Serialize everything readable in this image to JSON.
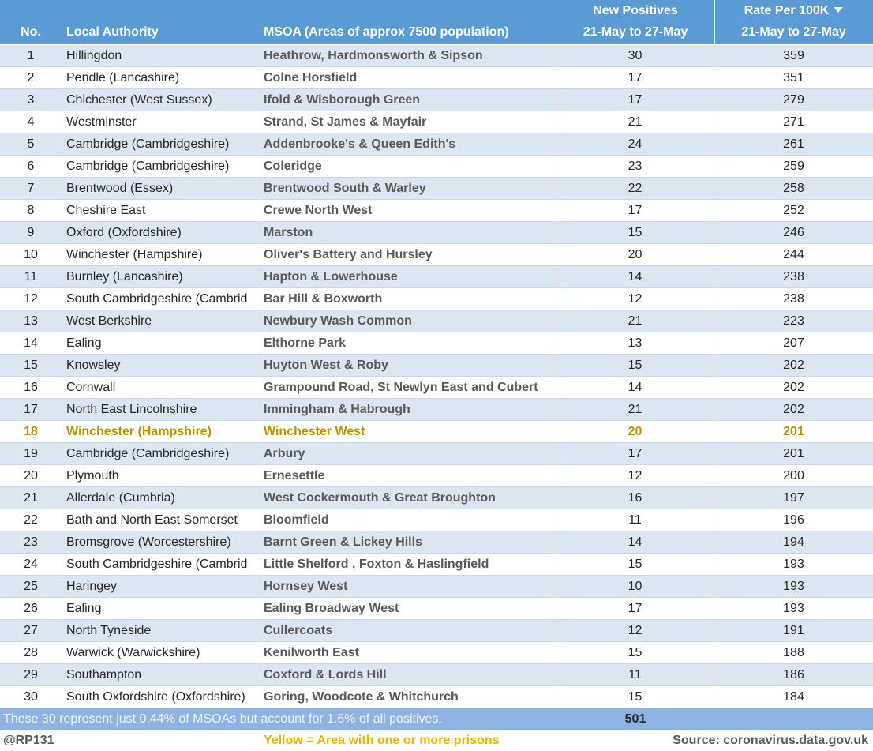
{
  "table": {
    "header": {
      "no": "No.",
      "local_authority": "Local Authority",
      "msoa": "MSOA (Areas of approx 7500 population)",
      "new_positives": [
        "New Positives",
        "21-May to 27-May"
      ],
      "rate": [
        "Rate Per 100K",
        "21-May to 27-May"
      ]
    },
    "rows": [
      [
        1,
        "Hillingdon",
        "Heathrow, Hardmonsworth & Sipson",
        30,
        359
      ],
      [
        2,
        "Pendle (Lancashire)",
        "Colne Horsfield",
        17,
        351
      ],
      [
        3,
        "Chichester (West Sussex)",
        "Ifold & Wisborough Green",
        17,
        279
      ],
      [
        4,
        "Westminster",
        "Strand, St James & Mayfair",
        21,
        271
      ],
      [
        5,
        "Cambridge (Cambridgeshire)",
        "Addenbrooke's & Queen Edith's",
        24,
        261
      ],
      [
        6,
        "Cambridge (Cambridgeshire)",
        "Coleridge",
        23,
        259
      ],
      [
        7,
        "Brentwood (Essex)",
        "Brentwood South & Warley",
        22,
        258
      ],
      [
        8,
        "Cheshire East",
        "Crewe North West",
        17,
        252
      ],
      [
        9,
        "Oxford (Oxfordshire)",
        "Marston",
        15,
        246
      ],
      [
        10,
        "Winchester (Hampshire)",
        "Oliver's Battery and Hursley",
        20,
        244
      ],
      [
        11,
        "Burnley (Lancashire)",
        "Hapton & Lowerhouse",
        14,
        238
      ],
      [
        12,
        "South Cambridgeshire (Cambrid",
        "Bar Hill & Boxworth",
        12,
        238
      ],
      [
        13,
        "West Berkshire",
        "Newbury Wash Common",
        21,
        223
      ],
      [
        14,
        "Ealing",
        "Elthorne Park",
        13,
        207
      ],
      [
        15,
        "Knowsley",
        "Huyton West & Roby",
        15,
        202
      ],
      [
        16,
        "Cornwall",
        "Grampound Road, St Newlyn East and Cubert",
        14,
        202
      ],
      [
        17,
        "North East Lincolnshire",
        "Immingham & Habrough",
        21,
        202
      ],
      [
        18,
        "Winchester (Hampshire)",
        "Winchester West",
        20,
        201
      ],
      [
        19,
        "Cambridge (Cambridgeshire)",
        "Arbury",
        17,
        201
      ],
      [
        20,
        "Plymouth",
        "Ernesettle",
        12,
        200
      ],
      [
        21,
        "Allerdale (Cumbria)",
        "West Cockermouth & Great Broughton",
        16,
        197
      ],
      [
        22,
        "Bath and North East Somerset",
        "Bloomfield",
        11,
        196
      ],
      [
        23,
        "Bromsgrove (Worcestershire)",
        "Barnt Green & Lickey Hills",
        14,
        194
      ],
      [
        24,
        "South Cambridgeshire (Cambrid",
        "Little Shelford , Foxton & Haslingfield",
        15,
        193
      ],
      [
        25,
        "Haringey",
        "Hornsey West",
        10,
        193
      ],
      [
        26,
        "Ealing",
        "Ealing Broadway West",
        17,
        193
      ],
      [
        27,
        "North Tyneside",
        "Cullercoats",
        12,
        191
      ],
      [
        28,
        "Warwick (Warwickshire)",
        "Kenilworth East",
        15,
        188
      ],
      [
        29,
        "Southampton",
        "Coxford & Lords Hill",
        11,
        186
      ],
      [
        30,
        "South Oxfordshire (Oxfordshire)",
        "Goring, Woodcote & Whitchurch",
        15,
        184
      ]
    ],
    "footer": {
      "note": "These 30 represent just 0.44% of MSOAs but account for 1.6% of all positives.",
      "total": 501
    }
  },
  "credit": "@RP131",
  "legend": "Yellow = Area with one or more prisons",
  "source": "Source: coronavirus.data.gov.uk"
}
